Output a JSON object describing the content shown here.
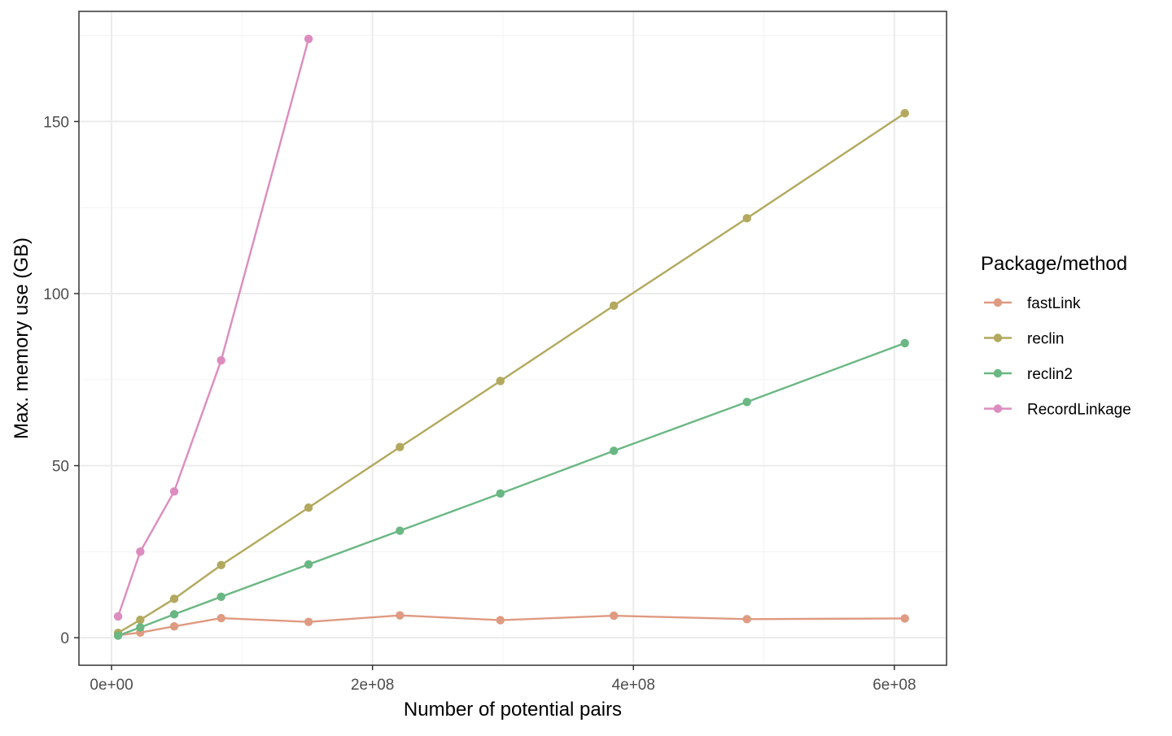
{
  "chart_data": {
    "type": "line",
    "xlabel": "Number of potential pairs",
    "ylabel": "Max. memory use (GB)",
    "xlim": [
      -25000000,
      640000000
    ],
    "ylim": [
      -8,
      182
    ],
    "x_ticks": [
      {
        "value": 0,
        "label": "0e+00"
      },
      {
        "value": 200000000,
        "label": "2e+08"
      },
      {
        "value": 400000000,
        "label": "4e+08"
      },
      {
        "value": 600000000,
        "label": "6e+08"
      }
    ],
    "x_minor_ticks": [
      100000000,
      300000000,
      500000000
    ],
    "y_ticks": [
      {
        "value": 0,
        "label": "0"
      },
      {
        "value": 50,
        "label": "50"
      },
      {
        "value": 100,
        "label": "100"
      },
      {
        "value": 150,
        "label": "150"
      }
    ],
    "y_minor_ticks": [
      25,
      75,
      125,
      175
    ],
    "grid": true,
    "legend": {
      "title": "Package/method",
      "position": "right"
    },
    "series": [
      {
        "name": "fastLink",
        "color": "#df9a82",
        "points": [
          [
            5000000,
            0.7
          ],
          [
            22000000,
            1.5
          ],
          [
            48000000,
            3.3
          ],
          [
            84000000,
            5.7
          ],
          [
            151000000,
            4.6
          ],
          [
            221000000,
            6.5
          ],
          [
            298000000,
            5.1
          ],
          [
            385000000,
            6.4
          ],
          [
            487000000,
            5.4
          ],
          [
            608000000,
            5.6
          ]
        ]
      },
      {
        "name": "reclin",
        "color": "#b2a95e",
        "points": [
          [
            5000000,
            1.4
          ],
          [
            22000000,
            5.2
          ],
          [
            48000000,
            11.3
          ],
          [
            84000000,
            21.1
          ],
          [
            151000000,
            37.8
          ],
          [
            221000000,
            55.4
          ],
          [
            298000000,
            74.6
          ],
          [
            385000000,
            96.5
          ],
          [
            487000000,
            121.9
          ],
          [
            608000000,
            152.4
          ]
        ]
      },
      {
        "name": "reclin2",
        "color": "#6ab783",
        "points": [
          [
            5000000,
            0.6
          ],
          [
            22000000,
            3.0
          ],
          [
            48000000,
            6.8
          ],
          [
            84000000,
            11.9
          ],
          [
            151000000,
            21.3
          ],
          [
            221000000,
            31.1
          ],
          [
            298000000,
            41.9
          ],
          [
            385000000,
            54.3
          ],
          [
            487000000,
            68.5
          ],
          [
            608000000,
            85.6
          ]
        ]
      },
      {
        "name": "RecordLinkage",
        "color": "#dd8cbf",
        "points": [
          [
            5000000,
            6.2
          ],
          [
            22000000,
            25.0
          ],
          [
            48000000,
            42.5
          ],
          [
            84000000,
            80.6
          ],
          [
            151000000,
            174.0
          ]
        ]
      }
    ]
  }
}
